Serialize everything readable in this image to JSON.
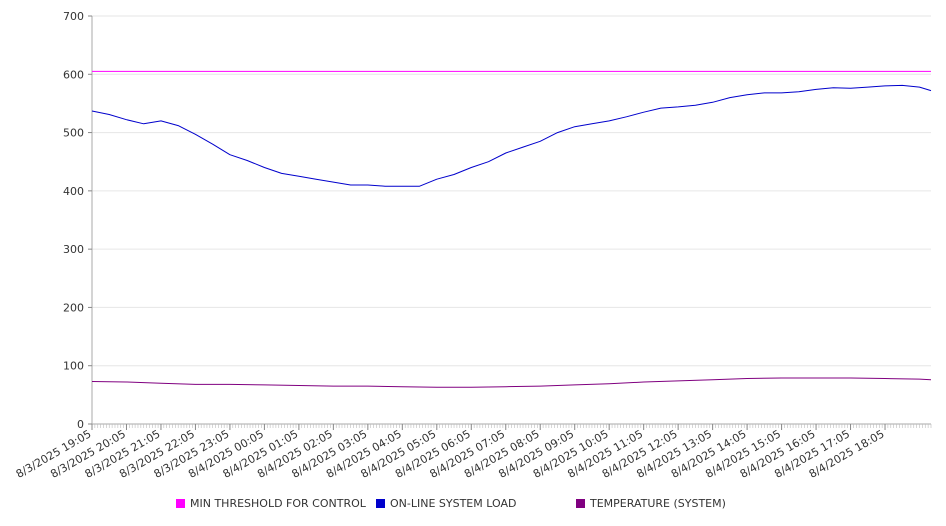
{
  "chart_data": {
    "type": "line",
    "title": "",
    "xlabel": "",
    "ylabel": "",
    "ylim": [
      0,
      700
    ],
    "yticks": [
      0,
      100,
      200,
      300,
      400,
      500,
      600,
      700
    ],
    "grid": true,
    "legend_position": "bottom",
    "x_start": "8/3/2025 19:05",
    "x_tick_labels": [
      "8/3/2025 19:05",
      "8/3/2025 20:05",
      "8/3/2025 21:05",
      "8/3/2025 22:05",
      "8/3/2025 23:05",
      "8/4/2025 00:05",
      "8/4/2025 01:05",
      "8/4/2025 02:05",
      "8/4/2025 03:05",
      "8/4/2025 04:05",
      "8/4/2025 05:05",
      "8/4/2025 06:05",
      "8/4/2025 07:05",
      "8/4/2025 08:05",
      "8/4/2025 09:05",
      "8/4/2025 10:05",
      "8/4/2025 11:05",
      "8/4/2025 12:05",
      "8/4/2025 13:05",
      "8/4/2025 14:05",
      "8/4/2025 15:05",
      "8/4/2025 16:05",
      "8/4/2025 17:05",
      "8/4/2025 18:05"
    ],
    "x_end": "8/4/2025 19:25",
    "series": [
      {
        "name": "MIN THRESHOLD FOR CONTROL",
        "color": "#ff00ff",
        "x": [
          "8/3/2025 19:05",
          "8/4/2025 19:25"
        ],
        "values": [
          605,
          605
        ]
      },
      {
        "name": "ON-LINE SYSTEM LOAD",
        "color": "#0000cc",
        "x": [
          "8/3/2025 19:05",
          "8/3/2025 19:35",
          "8/3/2025 20:05",
          "8/3/2025 20:35",
          "8/3/2025 21:05",
          "8/3/2025 21:35",
          "8/3/2025 22:05",
          "8/3/2025 22:35",
          "8/3/2025 23:05",
          "8/3/2025 23:35",
          "8/4/2025 00:05",
          "8/4/2025 00:35",
          "8/4/2025 01:05",
          "8/4/2025 01:35",
          "8/4/2025 02:05",
          "8/4/2025 02:35",
          "8/4/2025 03:05",
          "8/4/2025 03:35",
          "8/4/2025 04:05",
          "8/4/2025 04:35",
          "8/4/2025 05:05",
          "8/4/2025 05:35",
          "8/4/2025 06:05",
          "8/4/2025 06:35",
          "8/4/2025 07:05",
          "8/4/2025 07:35",
          "8/4/2025 08:05",
          "8/4/2025 08:35",
          "8/4/2025 09:05",
          "8/4/2025 09:35",
          "8/4/2025 10:05",
          "8/4/2025 10:35",
          "8/4/2025 11:05",
          "8/4/2025 11:35",
          "8/4/2025 12:05",
          "8/4/2025 12:35",
          "8/4/2025 13:05",
          "8/4/2025 13:35",
          "8/4/2025 14:05",
          "8/4/2025 14:35",
          "8/4/2025 15:05",
          "8/4/2025 15:35",
          "8/4/2025 16:05",
          "8/4/2025 16:35",
          "8/4/2025 17:05",
          "8/4/2025 17:35",
          "8/4/2025 18:05",
          "8/4/2025 18:35",
          "8/4/2025 19:05",
          "8/4/2025 19:25"
        ],
        "values": [
          537,
          531,
          522,
          515,
          520,
          512,
          497,
          480,
          462,
          452,
          440,
          430,
          425,
          420,
          415,
          410,
          410,
          408,
          408,
          408,
          420,
          428,
          440,
          450,
          465,
          475,
          485,
          500,
          510,
          515,
          520,
          527,
          535,
          542,
          544,
          547,
          552,
          560,
          565,
          568,
          568,
          570,
          574,
          577,
          576,
          578,
          580,
          581,
          578,
          572
        ]
      },
      {
        "name": "TEMPERATURE (SYSTEM)",
        "color": "#800080",
        "x": [
          "8/3/2025 19:05",
          "8/3/2025 20:05",
          "8/3/2025 21:05",
          "8/3/2025 22:05",
          "8/3/2025 23:05",
          "8/4/2025 00:05",
          "8/4/2025 01:05",
          "8/4/2025 02:05",
          "8/4/2025 03:05",
          "8/4/2025 04:05",
          "8/4/2025 05:05",
          "8/4/2025 06:05",
          "8/4/2025 07:05",
          "8/4/2025 08:05",
          "8/4/2025 09:05",
          "8/4/2025 10:05",
          "8/4/2025 11:05",
          "8/4/2025 12:05",
          "8/4/2025 13:05",
          "8/4/2025 14:05",
          "8/4/2025 15:05",
          "8/4/2025 16:05",
          "8/4/2025 17:05",
          "8/4/2025 18:05",
          "8/4/2025 19:05",
          "8/4/2025 19:25"
        ],
        "values": [
          73,
          72,
          70,
          68,
          68,
          67,
          66,
          65,
          65,
          64,
          63,
          63,
          64,
          65,
          67,
          69,
          72,
          74,
          76,
          78,
          79,
          79,
          79,
          78,
          77,
          76
        ]
      }
    ]
  }
}
